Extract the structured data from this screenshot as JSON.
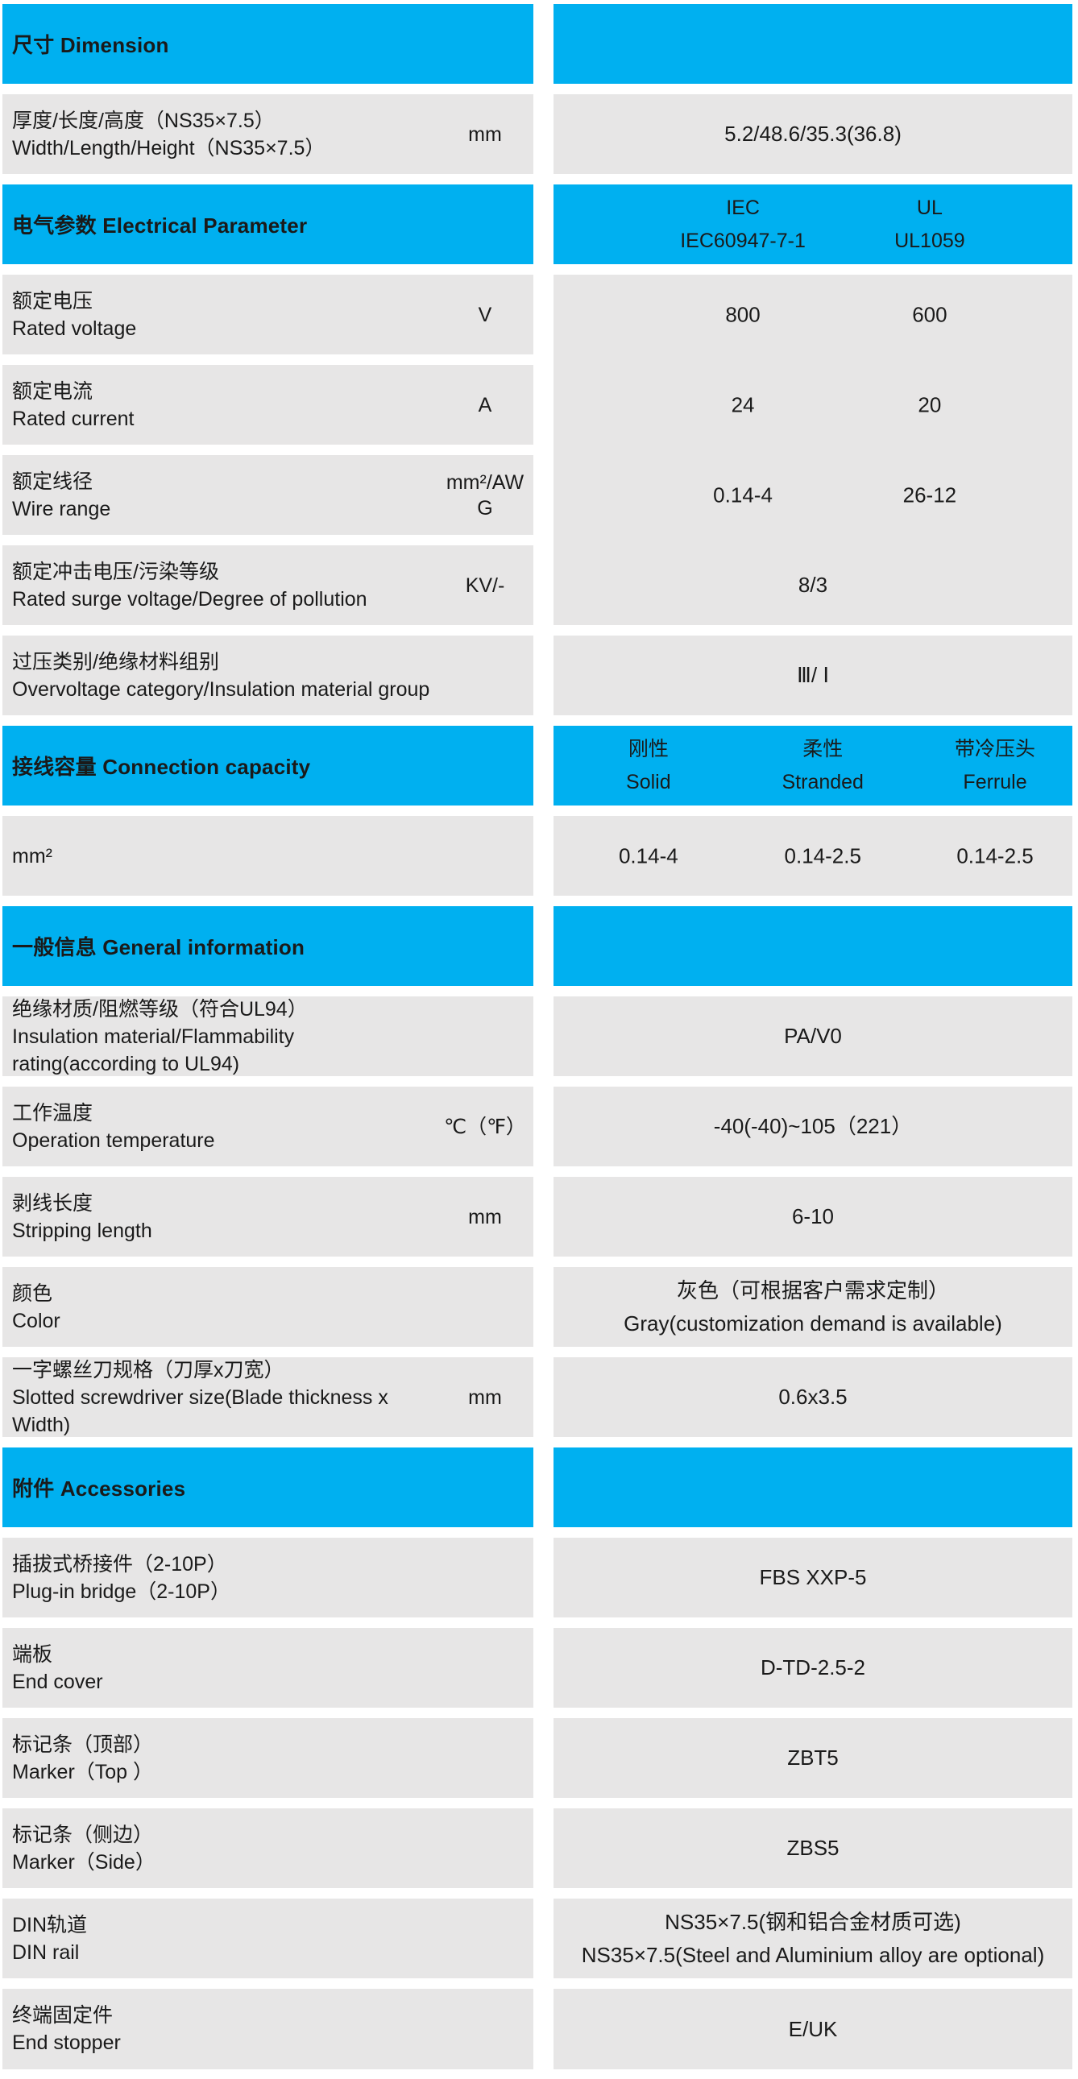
{
  "colors": {
    "header_bg": "#00B0F0",
    "row_bg": "#E7E6E6",
    "page_bg": "#FFFFFF",
    "text": "#1A1A1A"
  },
  "rows": [
    {
      "kind": "section",
      "label": "尺寸 Dimension"
    },
    {
      "kind": "spec",
      "zh": "厚度/长度/高度（NS35×7.5）",
      "en": "Width/Length/Height（NS35×7.5）",
      "unit": "mm",
      "value": "5.2/48.6/35.3(36.8)"
    },
    {
      "kind": "section",
      "label": "电气参数 Electrical Parameter",
      "columns": [
        {
          "line1": "IEC",
          "line2": "IEC60947-7-1"
        },
        {
          "line1": "UL",
          "line2": "UL1059"
        }
      ]
    },
    {
      "kind": "spec",
      "zh": "额定电压",
      "en": "Rated voltage",
      "unit": "V",
      "values": [
        "800",
        "600"
      ]
    },
    {
      "kind": "spec",
      "zh": "额定电流",
      "en": "Rated current",
      "unit": "A",
      "values": [
        "24",
        "20"
      ]
    },
    {
      "kind": "spec",
      "zh": "额定线径",
      "en": "Wire range",
      "unit": "mm²/AWG",
      "values": [
        "0.14-4",
        "26-12"
      ]
    },
    {
      "kind": "spec",
      "zh": "额定冲击电压/污染等级",
      "en": "Rated surge voltage/Degree of pollution",
      "unit": "KV/-",
      "value": "8/3"
    },
    {
      "kind": "spec",
      "zh": "过压类别/绝缘材料组别",
      "en": "Overvoltage category/Insulation material group",
      "unit": "",
      "value": "Ⅲ/ Ⅰ"
    },
    {
      "kind": "section",
      "label": "接线容量 Connection capacity",
      "columns": [
        {
          "line1": "刚性",
          "line2": "Solid"
        },
        {
          "line1": "柔性",
          "line2": "Stranded"
        },
        {
          "line1": "带冷压头",
          "line2": "Ferrule"
        }
      ]
    },
    {
      "kind": "spec",
      "zh": "mm²",
      "en": "",
      "unit": "",
      "values": [
        "0.14-4",
        "0.14-2.5",
        "0.14-2.5"
      ]
    },
    {
      "kind": "section",
      "label": "一般信息 General information"
    },
    {
      "kind": "spec",
      "zh": "绝缘材质/阻燃等级（符合UL94）",
      "en": "Insulation material/Flammability rating(according to UL94)",
      "unit": "",
      "value": "PA/V0"
    },
    {
      "kind": "spec",
      "zh": "工作温度",
      "en": "Operation temperature",
      "unit": "℃（℉）",
      "value": "-40(-40)~105（221）"
    },
    {
      "kind": "spec",
      "zh": "剥线长度",
      "en": "Stripping length",
      "unit": "mm",
      "value": "6-10"
    },
    {
      "kind": "spec",
      "zh": "颜色",
      "en": "Color",
      "unit": "",
      "value_lines": [
        "灰色（可根据客户需求定制）",
        "Gray(customization demand is available)"
      ]
    },
    {
      "kind": "spec",
      "zh": "一字螺丝刀规格（刀厚x刀宽）",
      "en": "Slotted screwdriver size(Blade thickness x Width)",
      "unit": "mm",
      "value": "0.6x3.5"
    },
    {
      "kind": "section",
      "label": "附件 Accessories"
    },
    {
      "kind": "spec",
      "zh": "插拔式桥接件（2-10P）",
      "en": "Plug-in bridge（2-10P）",
      "unit": "",
      "value": "FBS XXP-5"
    },
    {
      "kind": "spec",
      "zh": "端板",
      "en": "End cover",
      "unit": "",
      "value": "D-TD-2.5-2"
    },
    {
      "kind": "spec",
      "zh": "标记条（顶部）",
      "en": "Marker（Top ）",
      "unit": "",
      "value": "ZBT5"
    },
    {
      "kind": "spec",
      "zh": "标记条（侧边）",
      "en": "Marker（Side）",
      "unit": "",
      "value": "ZBS5"
    },
    {
      "kind": "spec",
      "zh": "DIN轨道",
      "en": "DIN rail",
      "unit": "",
      "value_lines": [
        "NS35×7.5(钢和铝合金材质可选)",
        "NS35×7.5(Steel and Aluminium alloy are optional)"
      ]
    },
    {
      "kind": "spec",
      "zh": "终端固定件",
      "en": "End stopper",
      "unit": "",
      "value": "E/UK"
    }
  ]
}
